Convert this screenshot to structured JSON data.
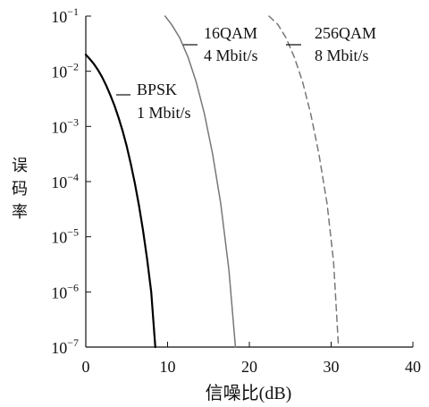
{
  "chart_data": {
    "type": "line",
    "xlabel": "信噪比(dB)",
    "ylabel": "误码率",
    "xlim": [
      0,
      40
    ],
    "ylim_exp": [
      -7,
      -1
    ],
    "y_scale": "log",
    "grid": false,
    "x_ticks": [
      0,
      10,
      20,
      30,
      40
    ],
    "y_tick_exponents": [
      -1,
      -2,
      -3,
      -4,
      -5,
      -6,
      -7
    ],
    "series": [
      {
        "label_line1": "BPSK",
        "label_line2": "1 Mbit/s",
        "style": "solid",
        "color": "#000000",
        "stroke_width": 2.2,
        "points": [
          {
            "x": 0.0,
            "y": 0.02
          },
          {
            "x": 0.5,
            "y": 0.0166
          },
          {
            "x": 1.0,
            "y": 0.0135
          },
          {
            "x": 1.5,
            "y": 0.0105
          },
          {
            "x": 2.0,
            "y": 0.0078
          },
          {
            "x": 2.5,
            "y": 0.0055
          },
          {
            "x": 3.0,
            "y": 0.0037
          },
          {
            "x": 3.5,
            "y": 0.0024
          },
          {
            "x": 4.0,
            "y": 0.00145
          },
          {
            "x": 4.5,
            "y": 0.00083
          },
          {
            "x": 5.0,
            "y": 0.00044
          },
          {
            "x": 5.5,
            "y": 0.00021
          },
          {
            "x": 6.0,
            "y": 9.3e-05
          },
          {
            "x": 6.5,
            "y": 3.7e-05
          },
          {
            "x": 7.0,
            "y": 1.3e-05
          },
          {
            "x": 7.5,
            "y": 3.9e-06
          },
          {
            "x": 8.0,
            "y": 1e-06
          },
          {
            "x": 8.5,
            "y": 1e-07
          }
        ]
      },
      {
        "label_line1": "16QAM",
        "label_line2": "4 Mbit/s",
        "style": "solid",
        "color": "#777777",
        "stroke_width": 1.5,
        "points": [
          {
            "x": 9.7,
            "y": 0.1
          },
          {
            "x": 10.5,
            "y": 0.07
          },
          {
            "x": 11.5,
            "y": 0.04
          },
          {
            "x": 12.5,
            "y": 0.018
          },
          {
            "x": 13.5,
            "y": 0.0064
          },
          {
            "x": 14.5,
            "y": 0.0017
          },
          {
            "x": 15.5,
            "y": 0.00032
          },
          {
            "x": 16.5,
            "y": 4e-05
          },
          {
            "x": 17.5,
            "y": 2.5e-06
          },
          {
            "x": 18.3,
            "y": 1e-07
          }
        ]
      },
      {
        "label_line1": "256QAM",
        "label_line2": "8 Mbit/s",
        "style": "dashed",
        "color": "#777777",
        "stroke_width": 1.5,
        "points": [
          {
            "x": 22.4,
            "y": 0.1
          },
          {
            "x": 23.5,
            "y": 0.07
          },
          {
            "x": 24.5,
            "y": 0.04
          },
          {
            "x": 25.5,
            "y": 0.018
          },
          {
            "x": 26.5,
            "y": 0.0065
          },
          {
            "x": 27.5,
            "y": 0.0017
          },
          {
            "x": 28.5,
            "y": 0.00032
          },
          {
            "x": 29.5,
            "y": 4e-05
          },
          {
            "x": 30.3,
            "y": 3.5e-06
          },
          {
            "x": 30.9,
            "y": 1e-07
          }
        ]
      }
    ]
  }
}
